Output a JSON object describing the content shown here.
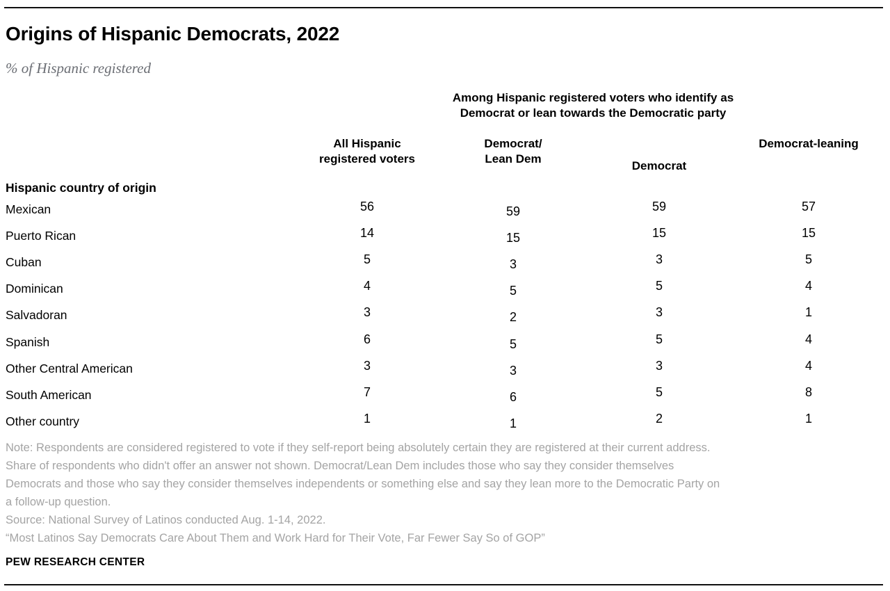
{
  "header": {
    "title": "Origins of Hispanic Democrats, 2022",
    "subtitle": "% of Hispanic registered"
  },
  "table": {
    "group_header": {
      "line1": "Among Hispanic registered voters who identify as",
      "line2": "Democrat or lean towards the Democratic party"
    },
    "columns": [
      {
        "label": "All Hispanic registered voters",
        "line1": "All Hispanic",
        "line2": "registered voters"
      },
      {
        "label": "Democrat/Lean Dem",
        "line1": "Democrat/",
        "line2": "Lean Dem"
      },
      {
        "label": "Democrat"
      },
      {
        "label": "Democrat-leaning"
      }
    ],
    "section_label": "Hispanic country of origin"
  },
  "chart_data": {
    "type": "table",
    "title": "Origins of Hispanic Democrats, 2022",
    "subtitle": "% of Hispanic registered",
    "group_header": "Among Hispanic registered voters who identify as Democrat or lean towards the Democratic party",
    "row_group_label": "Hispanic country of origin",
    "categories": [
      "Mexican",
      "Puerto Rican",
      "Cuban",
      "Dominican",
      "Salvadoran",
      "Spanish",
      "Other Central American",
      "South American",
      "Other country"
    ],
    "series": [
      {
        "name": "All Hispanic registered voters",
        "values": [
          56,
          14,
          5,
          4,
          3,
          6,
          3,
          7,
          1
        ]
      },
      {
        "name": "Democrat/Lean Dem",
        "values": [
          59,
          15,
          3,
          5,
          2,
          5,
          3,
          6,
          1
        ]
      },
      {
        "name": "Democrat",
        "values": [
          59,
          15,
          3,
          5,
          3,
          5,
          3,
          5,
          2
        ]
      },
      {
        "name": "Democrat-leaning",
        "values": [
          57,
          15,
          5,
          4,
          1,
          4,
          4,
          8,
          1
        ]
      }
    ],
    "unit": "%"
  },
  "footer": {
    "note_lines": [
      "Note: Respondents are considered registered to vote if they self-report being absolutely certain they are registered at their current address.",
      "Share of respondents who didn't offer an answer not shown. Democrat/Lean Dem includes those who say they consider themselves",
      "Democrats and those who say they consider themselves independents or something else and say they lean more to the Democratic Party on",
      "a follow-up question."
    ],
    "source": "Source: National Survey of Latinos conducted Aug. 1-14, 2022.",
    "quote": "“Most Latinos Say Democrats Care About Them and Work Hard for Their Vote, Far Fewer Say So of GOP”",
    "brand": "PEW RESEARCH CENTER"
  },
  "colors": {
    "text": "#000000",
    "subtitle_gray": "#6b6e74",
    "note_gray": "#a4a4a4",
    "rule_black": "#101010"
  }
}
